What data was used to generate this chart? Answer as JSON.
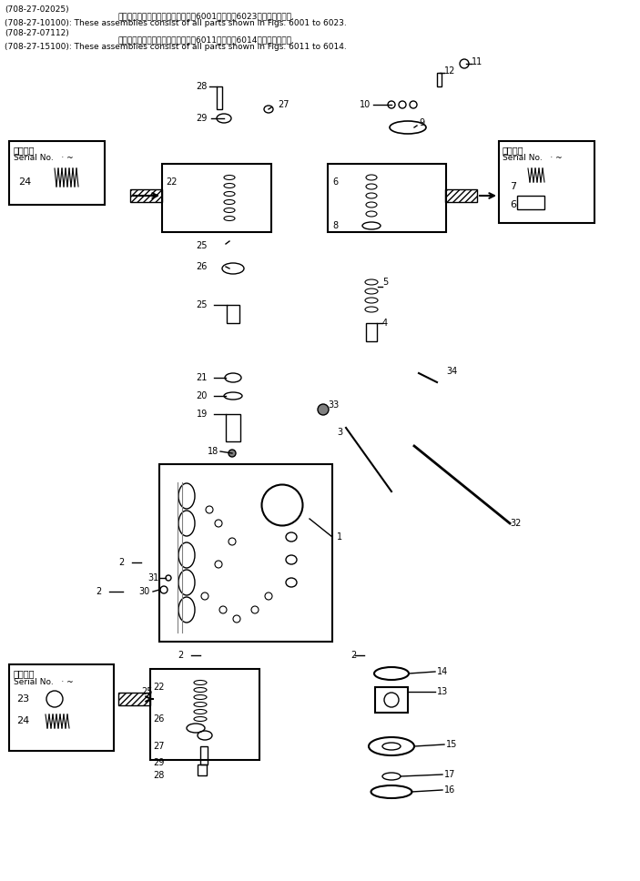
{
  "bg_color": "#ffffff",
  "header_lines": [
    "(708-27-02025)",
    "これらのアセンブリの構成部品は第6001図から第6023図まで含みます.",
    "(708-27-10100): These assemblies consist of all parts shown in Figs. 6001 to 6023.",
    "(708-27-07112)",
    "これらのアセンブリの構成部品は第6011図から第6014図まで含みます.",
    "(708-27-15100): These assemblies consist of all parts shown in Figs. 6011 to 6014."
  ],
  "serial_label": "適用号機\nSerial No.    ~",
  "fig_width": 7.03,
  "fig_height": 9.68,
  "dpi": 100
}
